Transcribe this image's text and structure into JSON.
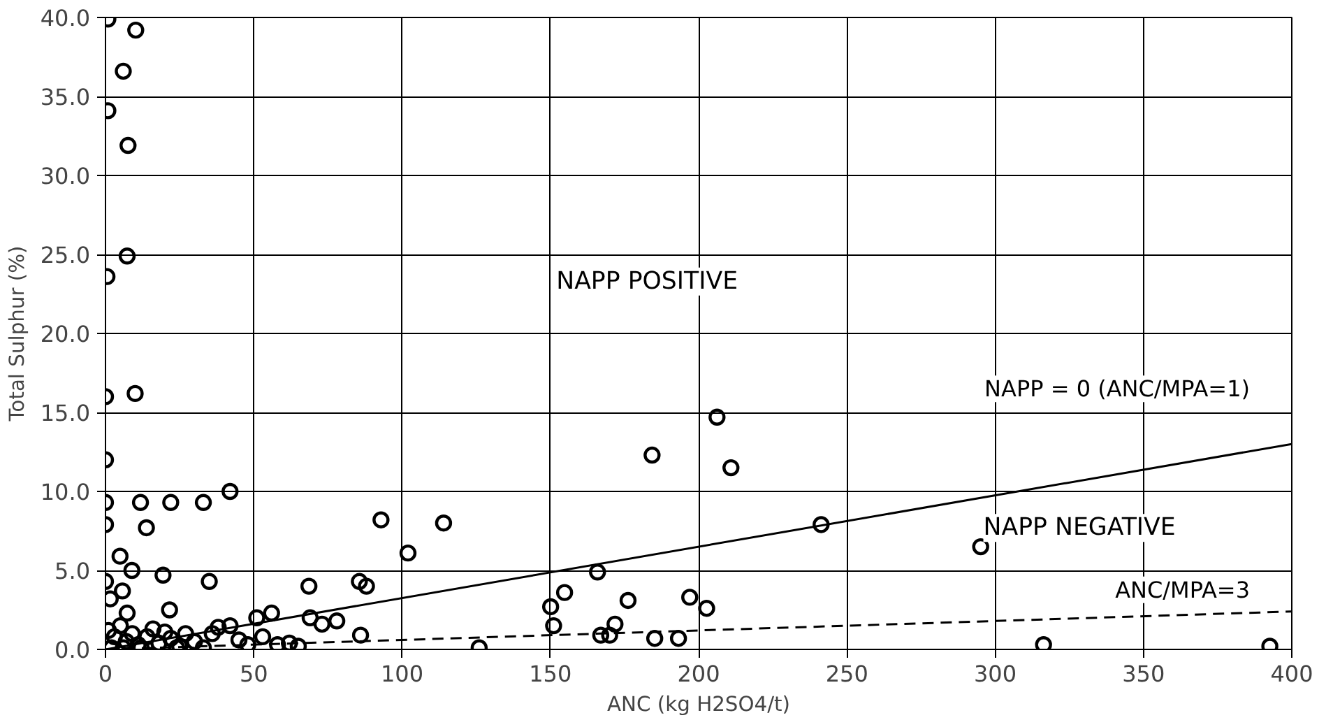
{
  "chart_data": {
    "type": "scatter",
    "xlabel": "ANC (kg H2SO4/t)",
    "ylabel": "Total Sulphur (%)",
    "xlim": [
      0,
      400
    ],
    "ylim": [
      0,
      40
    ],
    "xticks": [
      0,
      50,
      100,
      150,
      200,
      250,
      300,
      350,
      400
    ],
    "yticks": [
      {
        "value": 0,
        "label": "0.0"
      },
      {
        "value": 5,
        "label": "5.0"
      },
      {
        "value": 10,
        "label": "10.0"
      },
      {
        "value": 15,
        "label": "15.0"
      },
      {
        "value": 20,
        "label": "20.0"
      },
      {
        "value": 25,
        "label": "25.0"
      },
      {
        "value": 30,
        "label": "30.0"
      },
      {
        "value": 35,
        "label": "35.0"
      },
      {
        "value": 40,
        "label": "40.0"
      }
    ],
    "grid": true,
    "annotations": [
      "NAPP POSITIVE",
      "NAPP NEGATIVE"
    ],
    "series": [
      {
        "marker": "circle",
        "color": "#000000",
        "x": [
          0.8,
          10.2,
          6,
          0.8,
          7.6,
          7.3,
          0.5,
          10,
          0,
          0,
          0,
          11.8,
          22,
          33,
          42,
          0,
          13.8,
          92.9,
          114,
          4.9,
          8.9,
          19.4,
          35,
          102,
          0,
          5.7,
          1.6,
          68.6,
          85.6,
          88,
          21.6,
          7.3,
          51,
          56,
          69,
          73,
          78,
          86,
          126,
          1,
          3,
          5,
          7,
          9,
          11,
          14,
          16,
          18,
          20,
          22,
          25,
          27,
          30,
          36,
          38,
          42,
          45,
          48,
          53,
          58,
          62,
          65,
          2,
          6,
          12,
          24,
          33,
          206.2,
          184.3,
          210.9,
          241.3,
          295.1,
          165.9,
          154.8,
          150.1,
          151.1,
          176.2,
          197,
          202.7,
          171.8,
          170,
          167,
          185.2,
          193.2,
          316.3,
          392.6
        ],
        "values": [
          39.9,
          39.2,
          36.6,
          34.1,
          31.9,
          24.9,
          23.6,
          16.2,
          16,
          12,
          9.3,
          9.3,
          9.3,
          9.3,
          10,
          7.9,
          7.7,
          8.2,
          8.0,
          5.9,
          5.0,
          4.7,
          4.3,
          6.1,
          4.3,
          3.7,
          3.2,
          4.0,
          4.3,
          4.0,
          2.5,
          2.3,
          2.0,
          2.3,
          2.0,
          1.6,
          1.8,
          0.9,
          0.1,
          1.2,
          0.8,
          1.5,
          0.5,
          1.0,
          0.3,
          0.8,
          1.3,
          0.4,
          1.1,
          0.7,
          0.2,
          1.0,
          0.5,
          1.0,
          1.4,
          1.5,
          0.6,
          0.3,
          0.8,
          0.3,
          0.4,
          0.2,
          0.1,
          0.1,
          0.1,
          0.1,
          0.1,
          14.7,
          12.3,
          11.5,
          7.9,
          6.5,
          4.9,
          3.6,
          2.7,
          1.5,
          3.1,
          3.3,
          2.6,
          1.6,
          0.9,
          0.9,
          0.7,
          0.7,
          0.3,
          0.2
        ]
      },
      {
        "type": "line",
        "marker": "none",
        "name": "NAPP = 0 (ANC/MPA=1)",
        "color": "#000000",
        "line_style": "solid",
        "x": [
          0,
          400
        ],
        "values": [
          0,
          13.0
        ]
      },
      {
        "type": "line",
        "marker": "none",
        "name": "ANC/MPA=3",
        "color": "#000000",
        "line_style": "dashed",
        "x": [
          0,
          400
        ],
        "values": [
          0,
          2.4
        ]
      }
    ]
  }
}
